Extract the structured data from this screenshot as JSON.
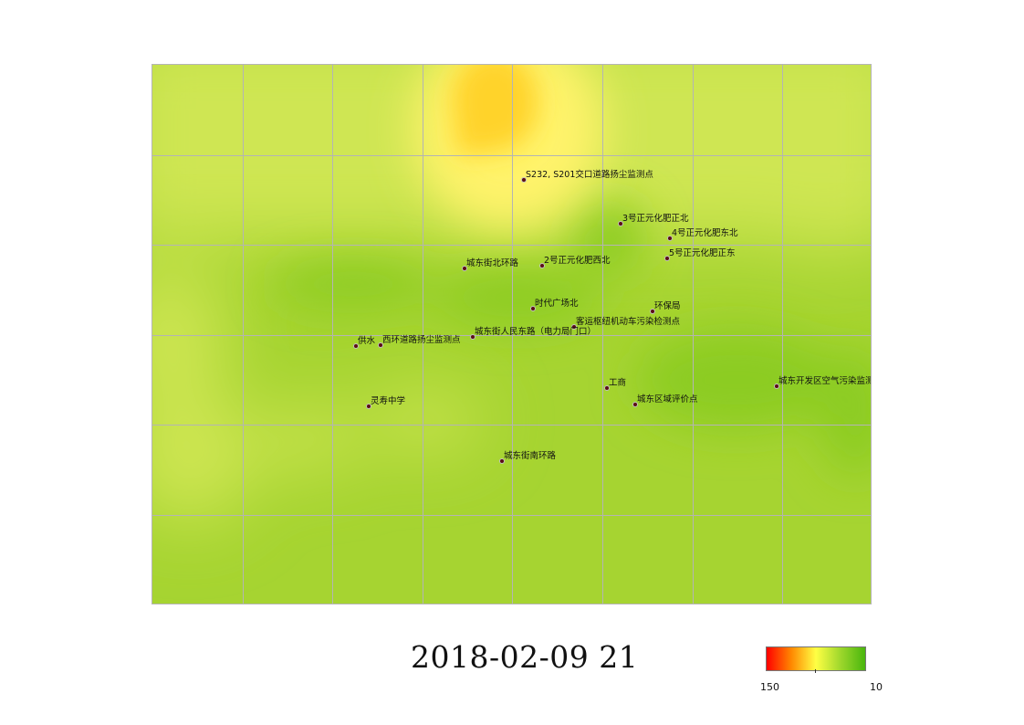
{
  "map": {
    "time_label": "2018-02-09 21",
    "legend": {
      "max_label": "150",
      "min_label": "10",
      "colors": [
        "#ff0000",
        "#ff8800",
        "#ffff44",
        "#9ed72c",
        "#49b60d"
      ]
    },
    "field_colors": {
      "base": "#a6d431",
      "light_green": "#cfe652",
      "yellow": "#fff36a",
      "gold": "#ffd32a",
      "dark_green": "#8ccc22"
    },
    "stations": [
      {
        "name": "S232, S201交口道路扬尘监测点"
      },
      {
        "name": "3号正元化肥正北"
      },
      {
        "name": "4号正元化肥东北"
      },
      {
        "name": "5号正元化肥正东"
      },
      {
        "name": "城东街北环路"
      },
      {
        "name": "2号正元化肥西北"
      },
      {
        "name": "时代广场北"
      },
      {
        "name": "环保局"
      },
      {
        "name": "客运枢纽机动车污染检测点"
      },
      {
        "name": "城东街人民东路（电力局门口）"
      },
      {
        "name": "供水"
      },
      {
        "name": "西环道路扬尘监测点"
      },
      {
        "name": "工商"
      },
      {
        "name": "城东开发区空气污染监测点"
      },
      {
        "name": "灵寿中学"
      },
      {
        "name": "城东区域评价点"
      },
      {
        "name": "城东街南环路"
      }
    ]
  }
}
